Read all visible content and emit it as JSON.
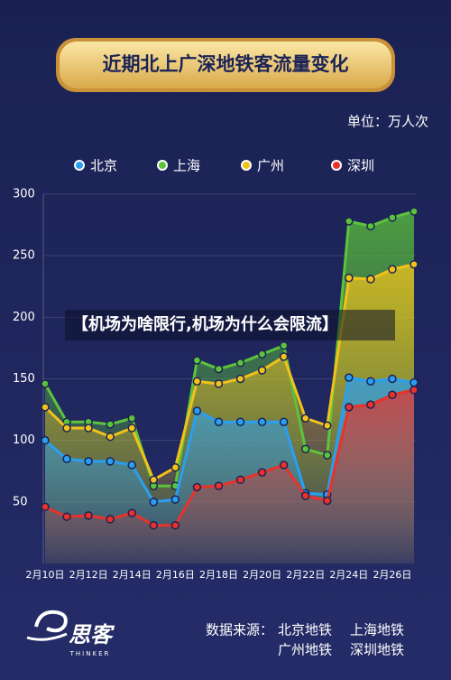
{
  "chart_data": {
    "type": "line",
    "title": "近期北上广深地铁客流量变化",
    "unit_label": "单位：万人次",
    "categories": [
      "2月10日",
      null,
      "2月12日",
      null,
      "2月14日",
      null,
      "2月16日",
      null,
      "2月18日",
      null,
      "2月20日",
      null,
      "2月22日",
      null,
      "2月24日",
      null,
      "2月26日",
      null
    ],
    "series": [
      {
        "name": "上海",
        "color": "#5cc43a",
        "values": [
          146,
          115,
          115,
          113,
          118,
          63,
          63,
          165,
          158,
          163,
          170,
          177,
          93,
          88,
          278,
          274,
          281,
          286
        ]
      },
      {
        "name": "广州",
        "color": "#f2c21a",
        "values": [
          127,
          110,
          110,
          103,
          110,
          68,
          78,
          148,
          146,
          150,
          157,
          168,
          118,
          112,
          232,
          231,
          239,
          243
        ]
      },
      {
        "name": "北京",
        "color": "#2a9ff0",
        "values": [
          100,
          85,
          83,
          83,
          80,
          50,
          52,
          124,
          115,
          115,
          115,
          115,
          57,
          56,
          151,
          148,
          150,
          147
        ]
      },
      {
        "name": "深圳",
        "color": "#e8322a",
        "values": [
          46,
          38,
          39,
          36,
          41,
          31,
          31,
          62,
          63,
          68,
          74,
          80,
          55,
          51,
          127,
          129,
          137,
          141
        ]
      }
    ],
    "legend_order": [
      2,
      0,
      1,
      3
    ],
    "ylim": [
      0,
      300
    ],
    "yticks": [
      50,
      100,
      150,
      200,
      250,
      300
    ],
    "grid": true,
    "area": true
  },
  "caption": "【机场为啥限行,机场为什么会限流】",
  "source_label": "数据来源：",
  "sources": [
    "北京地铁",
    "上海地铁",
    "广州地铁",
    "深圳地铁"
  ],
  "logo": {
    "name": "思客",
    "sub": "THINKER"
  }
}
